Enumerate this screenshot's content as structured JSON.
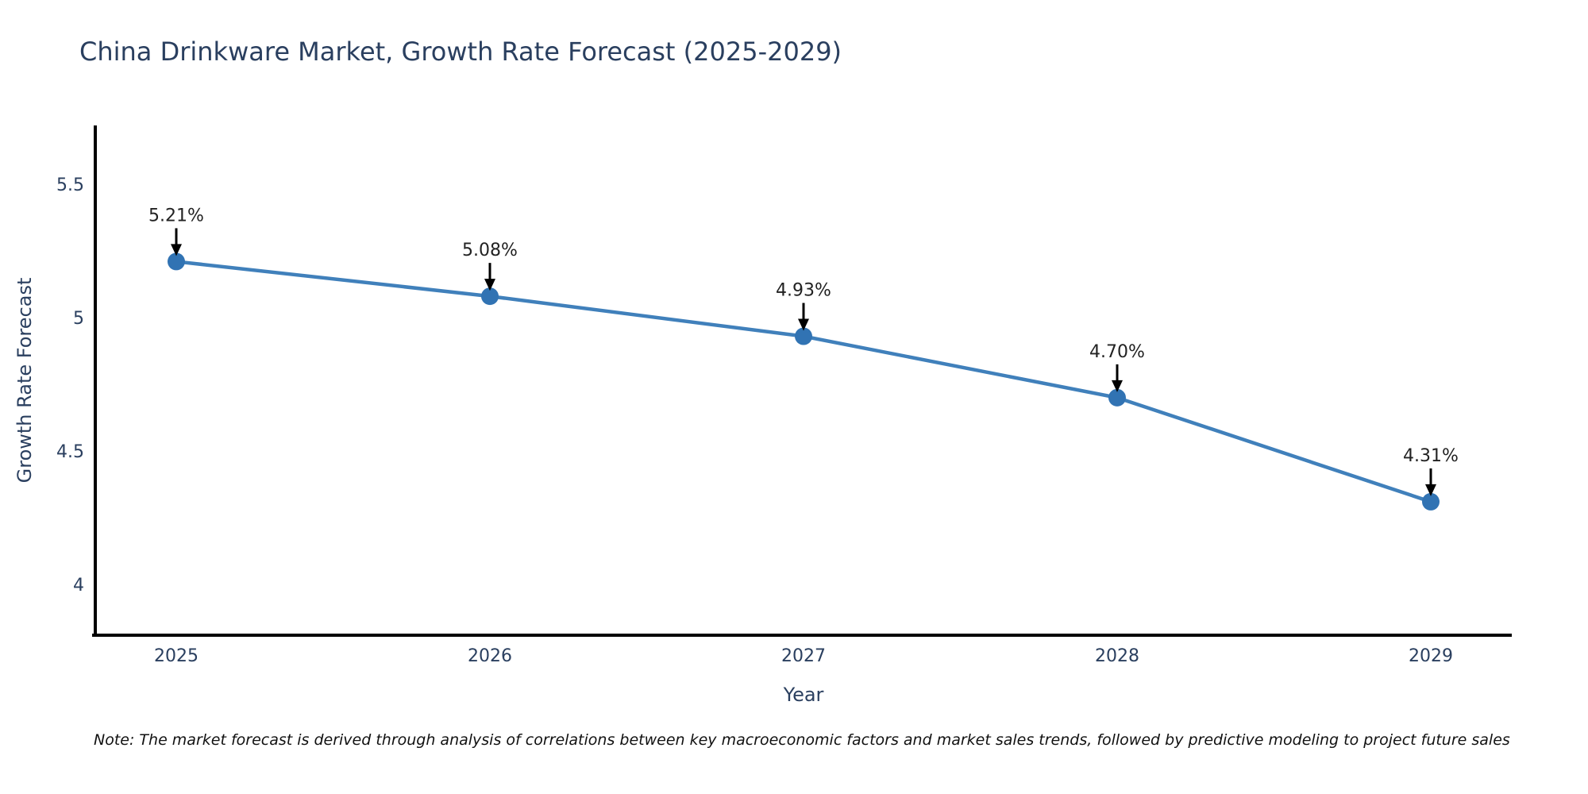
{
  "chart_data": {
    "type": "line",
    "title": "China Drinkware Market, Growth Rate Forecast (2025-2029)",
    "xlabel": "Year",
    "ylabel": "Growth Rate Forecast",
    "categories": [
      "2025",
      "2026",
      "2027",
      "2028",
      "2029"
    ],
    "values": [
      5.21,
      5.08,
      4.93,
      4.7,
      4.31
    ],
    "point_labels": [
      "5.21%",
      "5.08%",
      "4.93%",
      "4.70%",
      "4.31%"
    ],
    "yticks": [
      5.5,
      5.0,
      4.5,
      4.0
    ],
    "ytick_labels": [
      "5.5",
      "5",
      "4.5",
      "4"
    ],
    "ylim": [
      3.81,
      5.72
    ],
    "grid": false,
    "legend": "none",
    "colors": {
      "line": "#4080bb",
      "marker": "#3173b3",
      "axis": "#000000",
      "text": "#2a3f5f",
      "annotation": "#222222",
      "arrow": "#000000",
      "background": "#ffffff"
    },
    "note": "Note: The market forecast is derived through analysis of correlations between key macroeconomic factors and market sales trends, followed by predictive modeling to project future sales"
  }
}
